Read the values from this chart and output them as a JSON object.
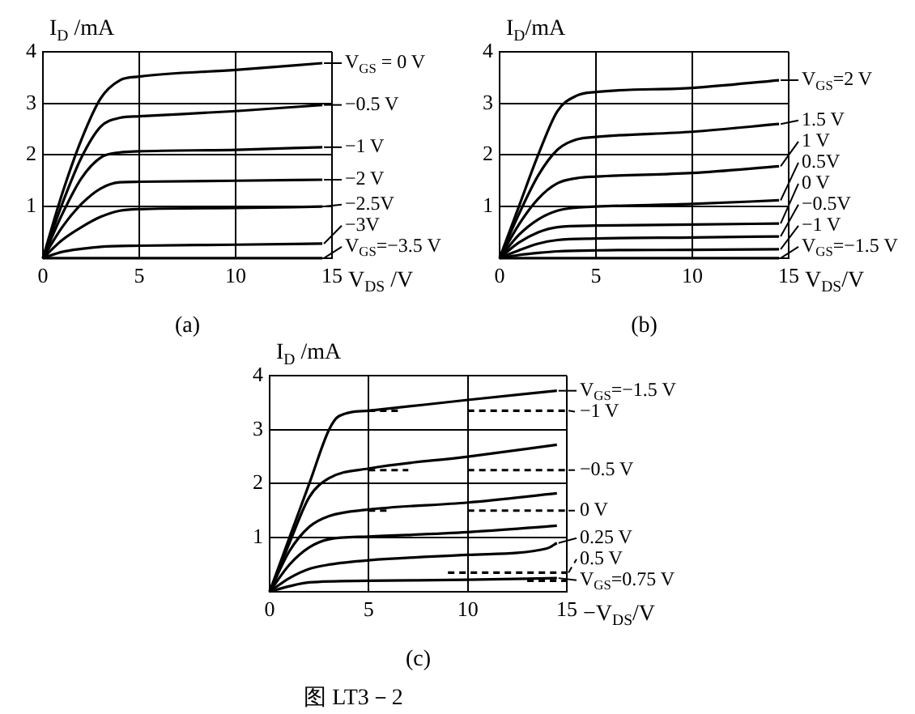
{
  "chart_data": [
    {
      "type": "line",
      "xlabel": "V$_{DS}$ /V",
      "ylabel": "I$_{D}$ /mA",
      "xlim": [
        0,
        15
      ],
      "ylim": [
        0,
        4
      ],
      "xticks": [
        0,
        5,
        10,
        15
      ],
      "yticks": [
        1,
        2,
        3,
        4
      ],
      "grid": true,
      "legend": "right",
      "annotations": [
        "(a)"
      ],
      "series": [
        {
          "name": "V$_{GS}$ = 0 V",
          "color": "#000000",
          "x": [
            0,
            1,
            2,
            3,
            4,
            5,
            10,
            14.5
          ],
          "values": [
            0,
            1.25,
            2.3,
            3.1,
            3.45,
            3.52,
            3.65,
            3.78
          ]
        },
        {
          "name": "−0.5 V",
          "color": "#000000",
          "x": [
            0,
            1,
            2,
            3,
            4,
            5,
            10,
            14.5
          ],
          "values": [
            0,
            1.05,
            1.95,
            2.55,
            2.72,
            2.75,
            2.85,
            2.97
          ]
        },
        {
          "name": "−1 V",
          "color": "#000000",
          "x": [
            0,
            1,
            2,
            3,
            4,
            5,
            10,
            14.5
          ],
          "values": [
            0,
            0.85,
            1.55,
            1.95,
            2.05,
            2.07,
            2.1,
            2.15
          ]
        },
        {
          "name": "−2 V",
          "color": "#000000",
          "x": [
            0,
            1,
            2,
            3,
            4,
            5,
            10,
            14.5
          ],
          "values": [
            0,
            0.6,
            1.05,
            1.35,
            1.47,
            1.48,
            1.5,
            1.52
          ]
        },
        {
          "name": "−2.5V",
          "color": "#000000",
          "x": [
            0,
            1,
            2,
            3,
            4,
            5,
            10,
            14.5
          ],
          "values": [
            0,
            0.35,
            0.6,
            0.8,
            0.92,
            0.95,
            0.97,
            1.0
          ]
        },
        {
          "name": "−3V",
          "color": "#000000",
          "x": [
            0,
            1,
            2,
            3,
            5,
            10,
            14.5
          ],
          "values": [
            0,
            0.12,
            0.18,
            0.22,
            0.24,
            0.26,
            0.28
          ]
        },
        {
          "name": "V$_{GS}$=−3.5 V",
          "color": "#000000",
          "x": [
            0,
            14.5
          ],
          "values": [
            0,
            0
          ]
        }
      ]
    },
    {
      "type": "line",
      "xlabel": "V$_{DS}$/V",
      "ylabel": "I$_{D}$/mA",
      "xlim": [
        0,
        15
      ],
      "ylim": [
        0,
        4
      ],
      "xticks": [
        0,
        5,
        10,
        15
      ],
      "yticks": [
        1,
        2,
        3,
        4
      ],
      "grid": true,
      "legend": "right",
      "annotations": [
        "(b)"
      ],
      "series": [
        {
          "name": "V$_{GS}$=2 V",
          "color": "#000000",
          "x": [
            0,
            1,
            2,
            3,
            4,
            5,
            10,
            14.5
          ],
          "values": [
            0,
            1.0,
            2.0,
            2.85,
            3.15,
            3.22,
            3.3,
            3.45
          ]
        },
        {
          "name": "1.5 V",
          "color": "#000000",
          "x": [
            0,
            1,
            2,
            3,
            4,
            5,
            10,
            14.5
          ],
          "values": [
            0,
            0.85,
            1.6,
            2.1,
            2.3,
            2.35,
            2.45,
            2.6
          ]
        },
        {
          "name": "1 V",
          "color": "#000000",
          "x": [
            0,
            1,
            2,
            3,
            4,
            5,
            10,
            14.5
          ],
          "values": [
            0,
            0.65,
            1.15,
            1.45,
            1.55,
            1.58,
            1.65,
            1.78
          ]
        },
        {
          "name": "0.5V",
          "color": "#000000",
          "x": [
            0,
            1,
            2,
            3,
            4,
            5,
            10,
            14.5
          ],
          "values": [
            0,
            0.45,
            0.75,
            0.92,
            0.98,
            1.0,
            1.05,
            1.12
          ]
        },
        {
          "name": "0 V",
          "color": "#000000",
          "x": [
            0,
            1,
            2,
            3,
            5,
            10,
            14.5
          ],
          "values": [
            0,
            0.3,
            0.5,
            0.6,
            0.63,
            0.65,
            0.67
          ]
        },
        {
          "name": "−0.5V",
          "color": "#000000",
          "x": [
            0,
            1,
            2,
            3,
            5,
            10,
            14.5
          ],
          "values": [
            0,
            0.15,
            0.28,
            0.35,
            0.38,
            0.4,
            0.42
          ]
        },
        {
          "name": "−1 V",
          "color": "#000000",
          "x": [
            0,
            1,
            2,
            3,
            5,
            10,
            14.5
          ],
          "values": [
            0,
            0.06,
            0.1,
            0.13,
            0.15,
            0.16,
            0.17
          ]
        },
        {
          "name": "V$_{GS}$=−1.5 V",
          "color": "#000000",
          "x": [
            0,
            14.5
          ],
          "values": [
            0,
            0
          ]
        }
      ]
    },
    {
      "type": "line",
      "xlabel": "−V$_{DS}$/V",
      "ylabel": "I$_{D}$ /mA",
      "xlim": [
        0,
        15
      ],
      "ylim": [
        0,
        4
      ],
      "xticks": [
        0,
        5,
        10,
        15
      ],
      "yticks": [
        1,
        2,
        3,
        4
      ],
      "grid": true,
      "legend": "right",
      "annotations": [
        "(c)",
        "图 LT3－2"
      ],
      "series": [
        {
          "name": "V$_{GS}$=−1.5 V",
          "color": "#000000",
          "x": [
            0,
            1,
            2,
            3,
            3.5,
            5,
            10,
            14.5
          ],
          "values": [
            0,
            1.0,
            2.0,
            3.0,
            3.25,
            3.35,
            3.55,
            3.72
          ]
        },
        {
          "color": "#000000",
          "x": [
            0,
            1,
            2,
            3,
            5,
            10,
            14.5
          ],
          "values": [
            0,
            0.9,
            1.75,
            2.1,
            2.28,
            2.5,
            2.72
          ]
        },
        {
          "color": "#000000",
          "x": [
            0,
            1,
            2,
            3,
            5,
            10,
            14.5
          ],
          "values": [
            0,
            0.75,
            1.2,
            1.4,
            1.52,
            1.65,
            1.82
          ]
        },
        {
          "color": "#000000",
          "x": [
            0,
            1,
            2,
            3,
            5,
            10,
            14.5
          ],
          "values": [
            0,
            0.5,
            0.82,
            0.97,
            1.02,
            1.1,
            1.22
          ]
        },
        {
          "name": "0.25 V",
          "color": "#000000",
          "x": [
            0,
            1,
            2,
            3,
            5,
            10,
            14,
            14.5
          ],
          "values": [
            0,
            0.25,
            0.42,
            0.5,
            0.58,
            0.68,
            0.8,
            0.9
          ]
        },
        {
          "name": "V$_{GS}$=0.75 V",
          "color": "#000000",
          "x": [
            0,
            1,
            2,
            5,
            10,
            14.5
          ],
          "values": [
            0,
            0.1,
            0.17,
            0.2,
            0.22,
            0.25
          ]
        },
        {
          "name": "−1 V",
          "color": "#000000",
          "line_style": "dashed",
          "x": [
            5,
            6.5,
            8,
            10,
            15
          ],
          "values": [
            3.35,
            3.35,
            null,
            3.35,
            3.35
          ]
        },
        {
          "name": "−0.5 V",
          "color": "#000000",
          "line_style": "dashed",
          "x": [
            5,
            7,
            8,
            10,
            15
          ],
          "values": [
            2.25,
            2.25,
            null,
            2.25,
            2.25
          ]
        },
        {
          "name": "0 V",
          "color": "#000000",
          "line_style": "dashed",
          "x": [
            5,
            6,
            8,
            10,
            15
          ],
          "values": [
            1.5,
            1.5,
            null,
            1.5,
            1.5
          ]
        },
        {
          "name": "0.5 V",
          "color": "#000000",
          "line_style": "dashed",
          "x": [
            9,
            15
          ],
          "values": [
            0.35,
            0.35
          ]
        },
        {
          "color": "#000000",
          "line_style": "dashed",
          "x": [
            13,
            15
          ],
          "values": [
            0.2,
            0.2
          ]
        }
      ]
    }
  ]
}
